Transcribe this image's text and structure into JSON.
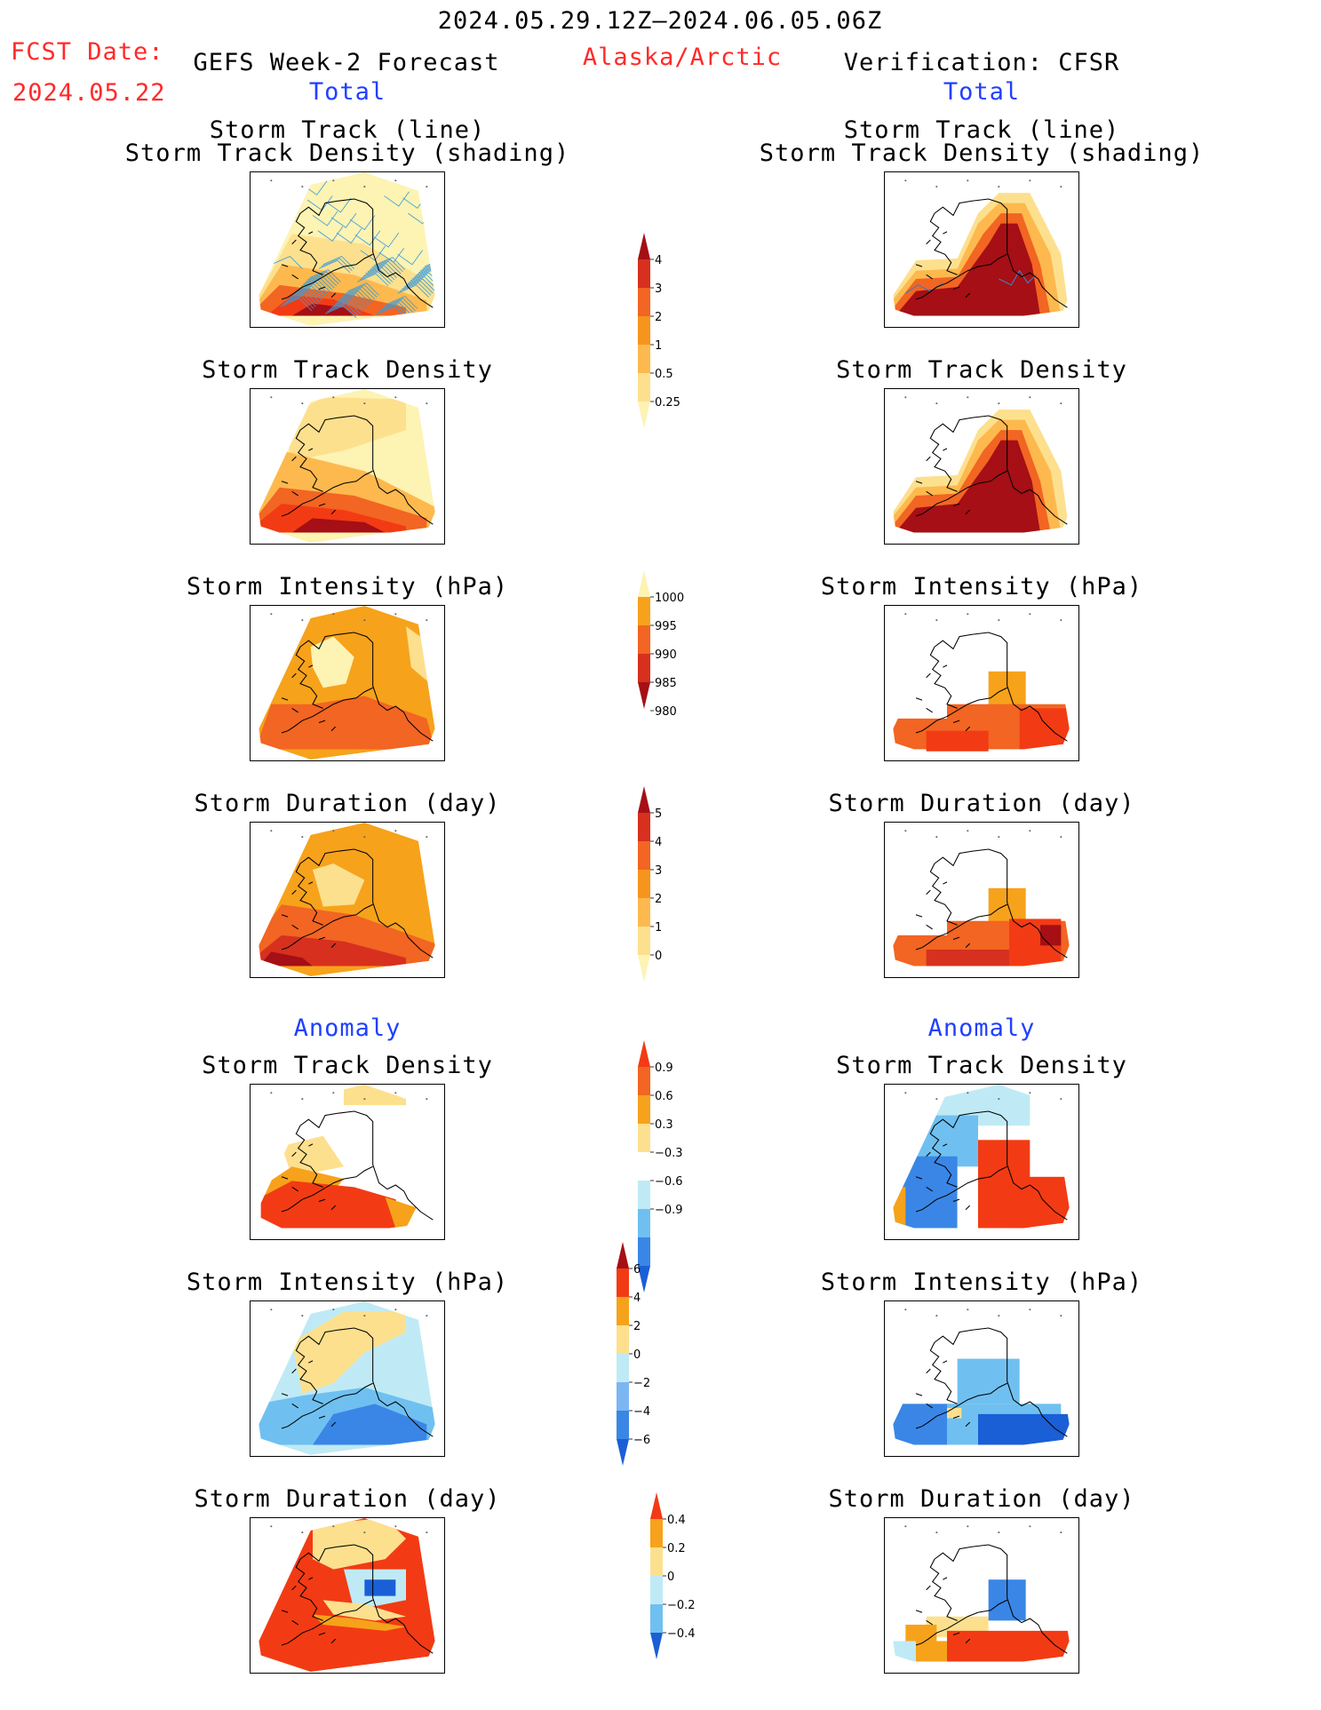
{
  "header": {
    "period": "2024.05.29.12Z–2024.06.05.06Z",
    "fcst_label": "FCST Date:",
    "fcst_date": "2024.05.22",
    "left_title": "GEFS Week-2 Forecast",
    "region": "Alaska/Arctic",
    "right_title": "Verification: CFSR",
    "left_section": "Total",
    "right_section": "Total"
  },
  "sections": {
    "anomaly_left": "Anomaly",
    "anomaly_right": "Anomaly"
  },
  "panel_titles": {
    "track_line": "Storm Track (line)",
    "track_shading": "Storm Track Density (shading)",
    "density": "Storm Track Density",
    "intensity": "Storm Intensity (hPa)",
    "duration": "Storm Duration (day)"
  },
  "colorbars": [
    {
      "id": "density_total",
      "ticks": [
        "4",
        "3",
        "2",
        "1",
        "0.5",
        "0.25"
      ],
      "colors": [
        "#a50f15",
        "#d7301f",
        "#f26522",
        "#f7941d",
        "#fdb94e",
        "#fde08e",
        "#fdf3b3"
      ]
    },
    {
      "id": "intensity_total",
      "ticks": [
        "1000",
        "995",
        "990",
        "985",
        "980"
      ],
      "colors": [
        "#fdf3b3",
        "#f7a21b",
        "#f26522",
        "#d7301f",
        "#a50f15"
      ]
    },
    {
      "id": "duration_total",
      "ticks": [
        "5",
        "4",
        "3",
        "2",
        "1",
        "0"
      ],
      "colors": [
        "#a50f15",
        "#d7301f",
        "#f26522",
        "#f7941d",
        "#fdb94e",
        "#fde08e",
        "#fdf3b3"
      ]
    },
    {
      "id": "density_anomaly",
      "ticks": [
        "0.9",
        "0.6",
        "0.3",
        "−0.3",
        "−0.6",
        "−0.9"
      ],
      "colors": [
        "#f23b14",
        "#f26522",
        "#f7a21b",
        "#fde08e",
        "#ffffff",
        "#bfeaf5",
        "#6fc0f0",
        "#3a86e6",
        "#1a5fd6"
      ]
    },
    {
      "id": "intensity_anomaly",
      "ticks": [
        "6",
        "4",
        "2",
        "0",
        "−2",
        "−4",
        "−6"
      ],
      "colors": [
        "#a50f15",
        "#f23b14",
        "#f7a21b",
        "#fde08e",
        "#bfeaf5",
        "#7cb6f2",
        "#3a86e6",
        "#1a5fd6"
      ]
    },
    {
      "id": "duration_anomaly",
      "ticks": [
        "0.4",
        "0.2",
        "0",
        "−0.2",
        "−0.4"
      ],
      "colors": [
        "#f23b14",
        "#f7a21b",
        "#fde08e",
        "#bfeaf5",
        "#6fc0f0",
        "#1a5fd6"
      ]
    }
  ],
  "palette": {
    "title_red": "#ff2a2a",
    "section_blue": "#2040ff",
    "track_line": "#3a9ad9"
  }
}
